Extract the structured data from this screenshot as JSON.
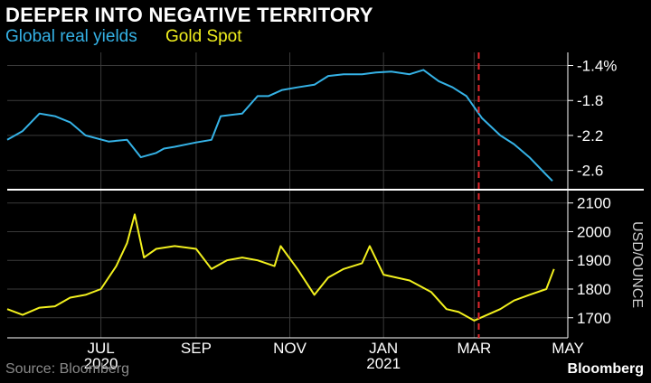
{
  "title": "DEEPER INTO NEGATIVE TERRITORY",
  "legend": {
    "series1": "Global real yields",
    "series2": "Gold Spot"
  },
  "source": "Source: Bloomberg",
  "brand": "Bloomberg",
  "colors": {
    "yields": "#35b2e6",
    "gold": "#f2f01e",
    "grid": "#3a3a3a",
    "divider": "#ffffff",
    "marker": "#e0282d",
    "axis_text": "#ffffff",
    "muted_text": "#8a8a8a"
  },
  "chart_data": [
    {
      "type": "line",
      "series": [
        {
          "name": "Global real yields",
          "x": [
            "2020-05-15",
            "2020-05-25",
            "2020-06-05",
            "2020-06-15",
            "2020-06-25",
            "2020-07-05",
            "2020-07-20",
            "2020-08-01",
            "2020-08-10",
            "2020-08-20",
            "2020-08-25",
            "2020-09-01",
            "2020-09-15",
            "2020-09-25",
            "2020-10-01",
            "2020-10-15",
            "2020-10-25",
            "2020-11-01",
            "2020-11-10",
            "2020-11-20",
            "2020-12-01",
            "2020-12-10",
            "2020-12-20",
            "2021-01-01",
            "2021-01-10",
            "2021-01-20",
            "2021-02-01",
            "2021-02-10",
            "2021-02-20",
            "2021-03-01",
            "2021-03-10",
            "2021-03-20",
            "2021-04-01",
            "2021-04-10",
            "2021-04-20",
            "2021-05-01",
            "2021-05-05"
          ],
          "values": [
            -2.25,
            -2.15,
            -1.95,
            -1.98,
            -2.05,
            -2.2,
            -2.27,
            -2.25,
            -2.45,
            -2.4,
            -2.35,
            -2.33,
            -2.28,
            -2.25,
            -1.98,
            -1.95,
            -1.75,
            -1.75,
            -1.68,
            -1.65,
            -1.62,
            -1.52,
            -1.5,
            -1.5,
            -1.48,
            -1.47,
            -1.5,
            -1.45,
            -1.58,
            -1.65,
            -1.75,
            -2.0,
            -2.2,
            -2.3,
            -2.45,
            -2.65,
            -2.72
          ]
        }
      ],
      "ylim": [
        -2.8,
        -1.25
      ],
      "yticks": [
        -1.4,
        -1.8,
        -2.2,
        -2.6
      ],
      "ytick_labels": [
        "-1.4%",
        "-1.8",
        "-2.2",
        "-2.6"
      ]
    },
    {
      "type": "line",
      "series": [
        {
          "name": "Gold Spot",
          "x": [
            "2020-05-15",
            "2020-05-25",
            "2020-06-05",
            "2020-06-15",
            "2020-06-25",
            "2020-07-05",
            "2020-07-15",
            "2020-07-25",
            "2020-08-01",
            "2020-08-06",
            "2020-08-12",
            "2020-08-20",
            "2020-09-01",
            "2020-09-15",
            "2020-09-25",
            "2020-10-05",
            "2020-10-15",
            "2020-10-25",
            "2020-11-05",
            "2020-11-09",
            "2020-11-20",
            "2020-12-01",
            "2020-12-10",
            "2020-12-20",
            "2021-01-01",
            "2021-01-06",
            "2021-01-15",
            "2021-02-01",
            "2021-02-15",
            "2021-02-25",
            "2021-03-05",
            "2021-03-15",
            "2021-04-01",
            "2021-04-10",
            "2021-04-20",
            "2021-05-01",
            "2021-05-06"
          ],
          "values": [
            1730,
            1710,
            1735,
            1740,
            1770,
            1780,
            1800,
            1880,
            1960,
            2060,
            1910,
            1940,
            1950,
            1940,
            1870,
            1900,
            1910,
            1900,
            1880,
            1950,
            1870,
            1780,
            1840,
            1870,
            1890,
            1950,
            1850,
            1830,
            1790,
            1730,
            1720,
            1690,
            1730,
            1760,
            1780,
            1800,
            1870
          ]
        }
      ],
      "ylim": [
        1630,
        2140
      ],
      "yticks": [
        1700,
        1800,
        1900,
        2000,
        2100
      ],
      "ylabel": "USD/OUNCE"
    }
  ],
  "x_axis": {
    "ticks": [
      {
        "date": "2020-07-15",
        "label": "JUL",
        "sub": "2020"
      },
      {
        "date": "2020-09-15",
        "label": "SEP",
        "sub": ""
      },
      {
        "date": "2020-11-15",
        "label": "NOV",
        "sub": ""
      },
      {
        "date": "2021-01-15",
        "label": "JAN",
        "sub": "2021"
      },
      {
        "date": "2021-03-15",
        "label": "MAR",
        "sub": ""
      },
      {
        "date": "2021-05-15",
        "label": "MAY",
        "sub": ""
      }
    ],
    "range": [
      "2020-05-15",
      "2021-05-15"
    ]
  },
  "marker_date": "2021-03-18"
}
